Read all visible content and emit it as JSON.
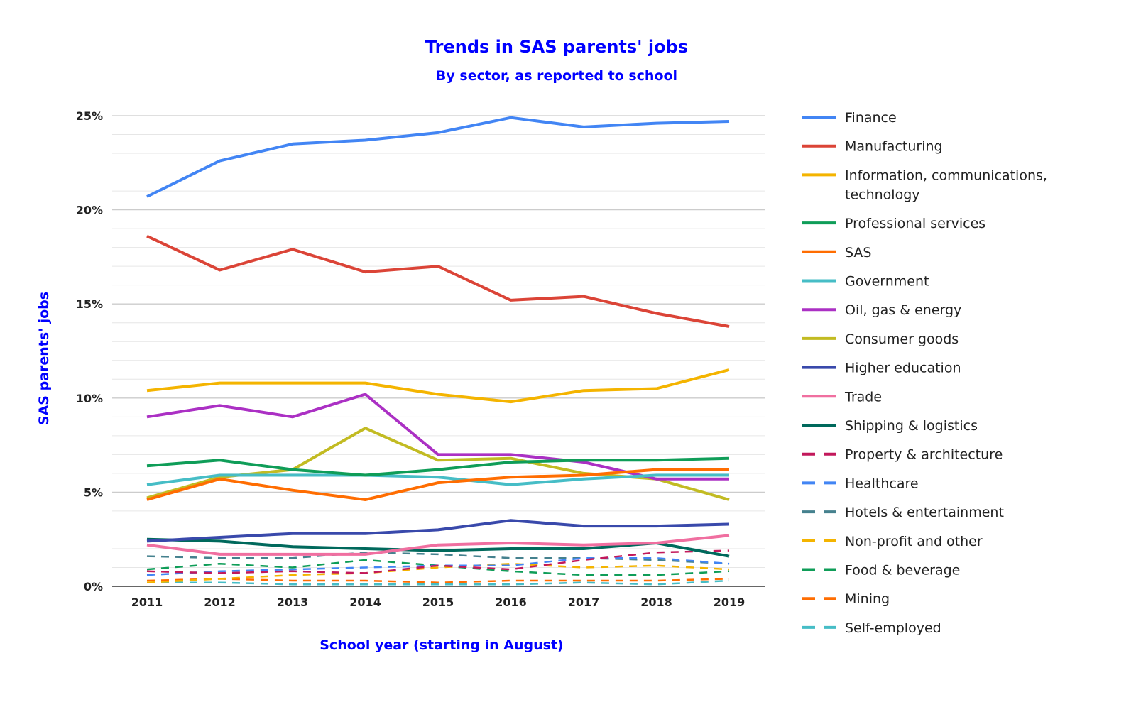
{
  "chart_data": {
    "type": "line",
    "title": "Trends in SAS parents' jobs",
    "subtitle": "By sector, as reported to school",
    "xlabel": "School year (starting in August)",
    "ylabel": "SAS parents' jobs",
    "x": [
      "2011",
      "2012",
      "2013",
      "2014",
      "2015",
      "2016",
      "2017",
      "2018",
      "2019"
    ],
    "ylim": [
      0,
      25
    ],
    "yticks": [
      0,
      5,
      10,
      15,
      20,
      25
    ],
    "ytick_labels": [
      "0%",
      "5%",
      "10%",
      "15%",
      "20%",
      "25%"
    ],
    "minor_gridlines_every": 1,
    "grid": true,
    "legend_position": "right",
    "series": [
      {
        "name": "Finance",
        "color": "#4285f4",
        "dashed": false,
        "values": [
          20.7,
          22.6,
          23.5,
          23.7,
          24.1,
          24.9,
          24.4,
          24.6,
          24.7
        ]
      },
      {
        "name": "Manufacturing",
        "color": "#db4437",
        "dashed": false,
        "values": [
          18.6,
          16.8,
          17.9,
          16.7,
          17.0,
          15.2,
          15.4,
          14.5,
          13.8
        ]
      },
      {
        "name": "Information, communications, technology",
        "legend_lines": [
          "Information, communications,",
          "technology"
        ],
        "color": "#f4b400",
        "dashed": false,
        "values": [
          10.4,
          10.8,
          10.8,
          10.8,
          10.2,
          9.8,
          10.4,
          10.5,
          11.5
        ]
      },
      {
        "name": "Professional services",
        "color": "#0f9d58",
        "dashed": false,
        "values": [
          6.4,
          6.7,
          6.2,
          5.9,
          6.2,
          6.6,
          6.7,
          6.7,
          6.8
        ]
      },
      {
        "name": "SAS",
        "color": "#ff6d01",
        "dashed": false,
        "values": [
          4.6,
          5.7,
          5.1,
          4.6,
          5.5,
          5.8,
          5.9,
          6.2,
          6.2
        ]
      },
      {
        "name": "Government",
        "color": "#46bdc6",
        "dashed": false,
        "values": [
          5.4,
          5.9,
          5.9,
          5.9,
          5.8,
          5.4,
          5.7,
          5.9,
          5.9
        ]
      },
      {
        "name": "Oil, gas & energy",
        "color": "#ab30c4",
        "dashed": false,
        "values": [
          9.0,
          9.6,
          9.0,
          10.2,
          7.0,
          7.0,
          6.6,
          5.7,
          5.7
        ]
      },
      {
        "name": "Consumer goods",
        "color": "#c2bb22",
        "dashed": false,
        "values": [
          4.7,
          5.8,
          6.2,
          8.4,
          6.7,
          6.8,
          6.0,
          5.7,
          4.6
        ]
      },
      {
        "name": "Higher education",
        "color": "#3949ab",
        "dashed": false,
        "values": [
          2.4,
          2.6,
          2.8,
          2.8,
          3.0,
          3.5,
          3.2,
          3.2,
          3.3
        ]
      },
      {
        "name": "Trade",
        "color": "#f06fa0",
        "dashed": false,
        "values": [
          2.2,
          1.7,
          1.7,
          1.7,
          2.2,
          2.3,
          2.2,
          2.3,
          2.7
        ]
      },
      {
        "name": "Shipping & logistics",
        "color": "#00695c",
        "dashed": false,
        "values": [
          2.5,
          2.4,
          2.1,
          2.0,
          1.9,
          2.0,
          2.0,
          2.3,
          1.6
        ]
      },
      {
        "name": "Property & architecture",
        "color": "#c2185b",
        "dashed": true,
        "values": [
          0.8,
          0.7,
          0.8,
          0.7,
          1.1,
          0.9,
          1.4,
          1.8,
          1.9
        ]
      },
      {
        "name": "Healthcare",
        "color": "#4285f4",
        "dashed": true,
        "values": [
          0.6,
          0.8,
          0.9,
          1.0,
          1.1,
          1.1,
          1.5,
          1.5,
          1.2
        ]
      },
      {
        "name": "Hotels & entertainment",
        "color": "#45818e",
        "dashed": true,
        "values": [
          1.6,
          1.5,
          1.5,
          1.8,
          1.7,
          1.5,
          1.5,
          1.4,
          1.2
        ]
      },
      {
        "name": "Non-profit and other",
        "color": "#f4b400",
        "dashed": true,
        "values": [
          0.2,
          0.4,
          0.6,
          0.7,
          1.0,
          1.2,
          1.0,
          1.1,
          0.9
        ]
      },
      {
        "name": "Food & beverage",
        "color": "#0f9d58",
        "dashed": true,
        "values": [
          0.9,
          1.2,
          1.0,
          1.4,
          1.1,
          0.8,
          0.6,
          0.6,
          0.8
        ]
      },
      {
        "name": "Mining",
        "color": "#ff6d01",
        "dashed": true,
        "values": [
          0.3,
          0.4,
          0.3,
          0.3,
          0.2,
          0.3,
          0.3,
          0.3,
          0.4
        ]
      },
      {
        "name": "Self-employed",
        "color": "#46bdc6",
        "dashed": true,
        "values": [
          0.2,
          0.2,
          0.1,
          0.1,
          0.1,
          0.1,
          0.2,
          0.1,
          0.3
        ]
      }
    ]
  }
}
